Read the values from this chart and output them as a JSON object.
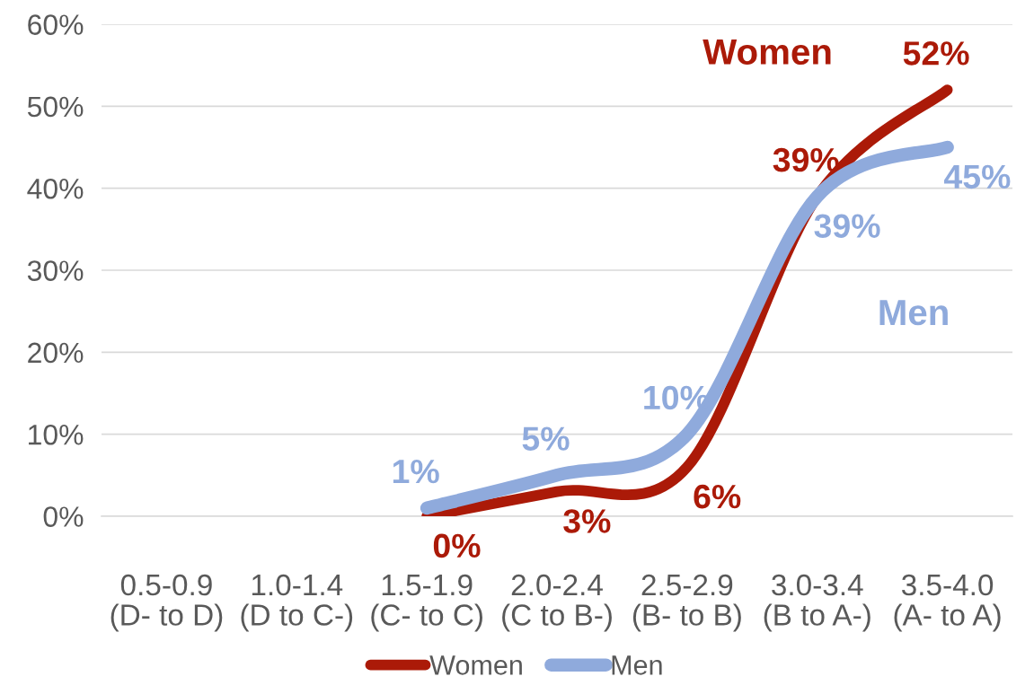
{
  "chart_data": {
    "type": "line",
    "categories": [
      "0.5-0.9\n(D- to D)",
      "1.0-1.4\n(D to C-)",
      "1.5-1.9\n(C- to C)",
      "2.0-2.4\n(C to B-)",
      "2.5-2.9\n(B- to B)",
      "3.0-3.4\n(B to A-)",
      "3.5-4.0\n(A- to A)"
    ],
    "ylim": [
      0,
      60
    ],
    "yticks": [
      {
        "value": 0,
        "label": "0%"
      },
      {
        "value": 10,
        "label": "10%"
      },
      {
        "value": 20,
        "label": "20%"
      },
      {
        "value": 30,
        "label": "30%"
      },
      {
        "value": 40,
        "label": "40%"
      },
      {
        "value": 50,
        "label": "50%"
      },
      {
        "value": 60,
        "label": "60%"
      }
    ],
    "grid": "y",
    "legend": "bottom",
    "series": [
      {
        "name": "Women",
        "color": "#ab1a08",
        "values": [
          null,
          null,
          0,
          3,
          6,
          39,
          52
        ],
        "value_labels": [
          null,
          null,
          "0%",
          "3%",
          "6%",
          "39%",
          "52%"
        ]
      },
      {
        "name": "Men",
        "color": "#8faadc",
        "values": [
          null,
          null,
          1,
          5,
          10,
          39,
          45
        ],
        "value_labels": [
          null,
          null,
          "1%",
          "5%",
          "10%",
          "39%",
          "45%"
        ]
      }
    ]
  }
}
